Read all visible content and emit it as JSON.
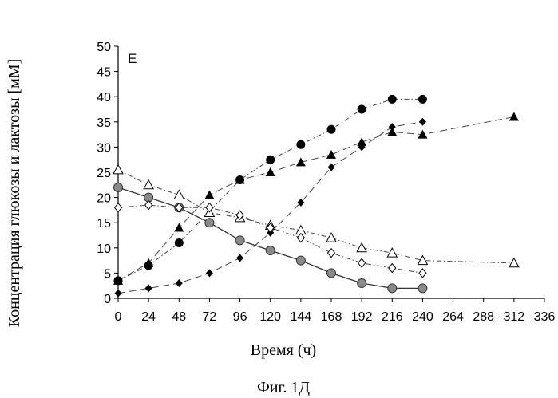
{
  "chart_data": {
    "type": "line",
    "panel_label": "E",
    "title": "",
    "xlabel": "Время (ч)",
    "ylabel": "Концентрация глюкозы и лактозы [мМ]",
    "caption": "Фиг. 1Д",
    "xlim": [
      0,
      336
    ],
    "ylim": [
      0,
      50
    ],
    "xticks": [
      0,
      24,
      48,
      72,
      96,
      120,
      144,
      168,
      192,
      216,
      240,
      264,
      288,
      312,
      336
    ],
    "yticks": [
      0,
      5,
      10,
      15,
      20,
      25,
      30,
      35,
      40,
      45,
      50
    ],
    "grid": false,
    "legend": "none",
    "series": [
      {
        "marker": "circle-filled-black",
        "line": "dash-dot",
        "x": [
          0,
          24,
          48,
          96,
          120,
          144,
          168,
          192,
          216,
          240
        ],
        "y": [
          3.5,
          6.5,
          11,
          23.5,
          27.5,
          30.5,
          33.5,
          37.5,
          39.5,
          39.5
        ]
      },
      {
        "marker": "triangle-filled-black",
        "line": "long-dash",
        "x": [
          0,
          24,
          48,
          72,
          96,
          120,
          144,
          168,
          192,
          216,
          240,
          312
        ],
        "y": [
          3.5,
          7,
          14,
          20.5,
          23.5,
          25,
          27,
          28.5,
          31,
          33,
          32.5,
          36
        ]
      },
      {
        "marker": "diamond-filled-black",
        "line": "long-dash",
        "x": [
          0,
          24,
          48,
          72,
          96,
          120,
          144,
          168,
          192,
          216,
          240
        ],
        "y": [
          1,
          2,
          3,
          5,
          8,
          13,
          19,
          26,
          30,
          34,
          35
        ]
      },
      {
        "marker": "circle-filled-gray",
        "line": "solid",
        "x": [
          0,
          24,
          48,
          72,
          96,
          120,
          144,
          168,
          192,
          216,
          240
        ],
        "y": [
          22,
          20,
          18,
          15,
          11.5,
          9.5,
          7.5,
          5,
          3,
          2,
          2
        ]
      },
      {
        "marker": "triangle-open",
        "line": "dash-dot",
        "x": [
          0,
          24,
          48,
          72,
          96,
          120,
          144,
          168,
          192,
          216,
          240,
          312
        ],
        "y": [
          25.5,
          22.5,
          20.5,
          17,
          16,
          14.5,
          13.5,
          12,
          10,
          9,
          7.5,
          7
        ]
      },
      {
        "marker": "diamond-open",
        "line": "dash-dot",
        "x": [
          0,
          24,
          48,
          72,
          96,
          120,
          144,
          168,
          192,
          216,
          240
        ],
        "y": [
          18,
          18.5,
          18,
          18,
          16.5,
          14,
          12,
          9,
          7,
          6,
          5
        ]
      }
    ]
  }
}
